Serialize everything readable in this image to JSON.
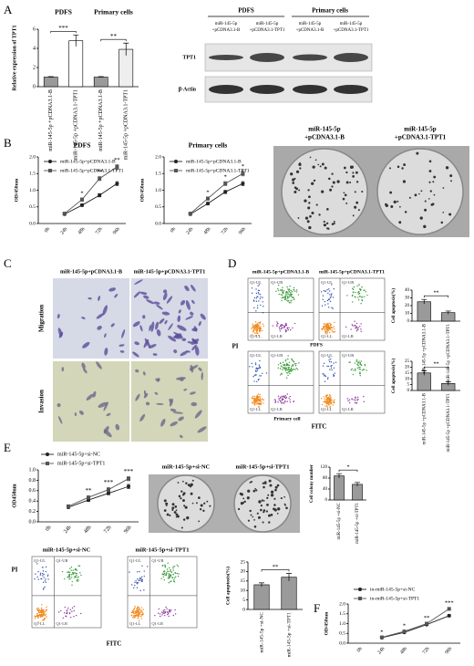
{
  "panel_labels": [
    "A",
    "B",
    "C",
    "D",
    "E",
    "F"
  ],
  "chart_data": [
    {
      "type": "bar",
      "ylabel": "Relative expression of TPT1",
      "categories": [
        "miR-145-5p +pCDNA3.1-B",
        "miR-145-5p +pCDNA3.1-TPT1",
        "miR-145-5p +pCDNA3.1-B",
        "miR-145-5p +pCDNA3.1-TPT1"
      ],
      "values": [
        1.0,
        4.8,
        1.0,
        3.9
      ],
      "errors": [
        0.05,
        0.6,
        0.05,
        0.65
      ],
      "colors": [
        "#9a9a9a",
        "#ffffff",
        "#9a9a9a",
        "#eeeeee"
      ],
      "group_labels": [
        "PDFS",
        "Primary cells"
      ],
      "significance": [
        "***",
        "**"
      ],
      "ylim": [
        0,
        6
      ],
      "yticks": [
        0,
        2,
        4,
        6
      ]
    },
    {
      "type": "line",
      "title": "PDFS",
      "ylabel": "OD/450nm",
      "categories": [
        "0h",
        "24h",
        "48h",
        "72h",
        "96h"
      ],
      "series": [
        {
          "name": "miR-145-5p+pCDNA3.1-B",
          "color": "#222222",
          "marker": "circle",
          "values": [
            null,
            0.28,
            0.55,
            0.85,
            1.2
          ],
          "errors": [
            null,
            0.03,
            0.04,
            0.05,
            0.06
          ]
        },
        {
          "name": "miR-145-5p+pCDNA3.1-TPT1",
          "color": "#555555",
          "marker": "square",
          "values": [
            null,
            0.3,
            0.72,
            1.35,
            1.7
          ],
          "errors": [
            null,
            0.03,
            0.05,
            0.06,
            0.07
          ]
        }
      ],
      "annotations": [
        null,
        null,
        "*",
        "**",
        "**"
      ],
      "ylim": [
        0,
        2
      ],
      "yticks": [
        {
          "value": 0,
          "label": "0.0"
        },
        {
          "value": 0.5,
          "label": "0.5"
        },
        {
          "value": 1,
          "label": "1.0"
        },
        {
          "value": 1.5,
          "label": "1.5"
        },
        {
          "value": 2,
          "label": "2.0"
        }
      ]
    },
    {
      "type": "line",
      "title": "Primary cells",
      "ylabel": "OD/450nm",
      "categories": [
        "0h",
        "24h",
        "48h",
        "72h",
        "96h"
      ],
      "series": [
        {
          "name": "miR-145-5p+pCDNA3.1-B",
          "color": "#222222",
          "marker": "circle",
          "values": [
            null,
            0.28,
            0.6,
            0.95,
            1.2
          ],
          "errors": [
            null,
            0.03,
            0.04,
            0.05,
            0.06
          ]
        },
        {
          "name": "miR-145-5p+pCDNA3.1-TPT1",
          "color": "#555555",
          "marker": "square",
          "values": [
            null,
            0.3,
            0.75,
            1.2,
            1.5
          ],
          "errors": [
            null,
            0.03,
            0.05,
            0.06,
            0.07
          ]
        }
      ],
      "annotations": [
        null,
        null,
        "*",
        "*",
        "*"
      ],
      "ylim": [
        0,
        2
      ],
      "yticks": [
        {
          "value": 0,
          "label": "0.0"
        },
        {
          "value": 0.5,
          "label": "0.5"
        },
        {
          "value": 1,
          "label": "1.0"
        },
        {
          "value": 1.5,
          "label": "1.5"
        },
        {
          "value": 2,
          "label": "2.0"
        }
      ]
    },
    {
      "type": "bar",
      "ylabel": "Cell apoptosis(%)",
      "categories": [
        "miR-145-5p +pCDNA3.1-B",
        "miR-145-5p +pCDNA3.1-TPT1"
      ],
      "values": [
        25,
        11
      ],
      "errors": [
        3,
        2
      ],
      "colors": [
        "#9a9a9a",
        "#9a9a9a"
      ],
      "significance": [
        "**"
      ],
      "ylim": [
        0,
        40
      ],
      "yticks": [
        0,
        10,
        20,
        30,
        40
      ]
    },
    {
      "type": "bar",
      "ylabel": "Cell apoptosis(%)",
      "categories": [
        "miR-145-5p +pCDNA3.1-B",
        "miR-145-5p +pCDNA3.1-TPT1"
      ],
      "values": [
        15,
        6
      ],
      "errors": [
        2,
        1.5
      ],
      "colors": [
        "#9a9a9a",
        "#9a9a9a"
      ],
      "significance": [
        "**"
      ],
      "ylim": [
        0,
        25
      ],
      "yticks": [
        0,
        5,
        10,
        15,
        20,
        25
      ]
    },
    {
      "type": "line",
      "ylabel": "OD450nm",
      "categories": [
        "0h",
        "24h",
        "48h",
        "72h",
        "96h"
      ],
      "series": [
        {
          "name": "miR-145-5p+si-NC",
          "color": "#222222",
          "marker": "circle",
          "values": [
            null,
            0.28,
            0.42,
            0.55,
            0.68
          ],
          "errors": [
            null,
            0.02,
            0.03,
            0.03,
            0.04
          ]
        },
        {
          "name": "miR-145-5p+si-TPT1",
          "color": "#555555",
          "marker": "square",
          "values": [
            null,
            0.3,
            0.47,
            0.62,
            0.83
          ],
          "errors": [
            null,
            0.02,
            0.03,
            0.04,
            0.04
          ]
        }
      ],
      "annotations": [
        null,
        null,
        "**",
        "***",
        "***"
      ],
      "ylim": [
        0,
        1
      ],
      "yticks": [
        {
          "value": 0,
          "label": "0.0"
        },
        {
          "value": 0.2,
          "label": "0.2"
        },
        {
          "value": 0.4,
          "label": "0.4"
        },
        {
          "value": 0.6,
          "label": "0.6"
        },
        {
          "value": 0.8,
          "label": "0.8"
        },
        {
          "value": 1,
          "label": "1.0"
        }
      ]
    },
    {
      "type": "bar",
      "ylabel": "Cell colony number",
      "categories": [
        "miR-145-5p +si-NC",
        "miR-145-5p +si-TPT1"
      ],
      "values": [
        88,
        57
      ],
      "errors": [
        8,
        7
      ],
      "colors": [
        "#9a9a9a",
        "#9a9a9a"
      ],
      "significance": [
        "*"
      ],
      "ylim": [
        0,
        120
      ],
      "yticks": [
        0,
        40,
        80,
        120
      ]
    },
    {
      "type": "bar",
      "ylabel": "Cell apoptosis(%)",
      "categories": [
        "miR-145-5p +si-NC",
        "miR-145-5p +si-TPT1"
      ],
      "values": [
        13,
        17
      ],
      "errors": [
        1,
        2
      ],
      "colors": [
        "#9a9a9a",
        "#9a9a9a"
      ],
      "significance": [
        "**"
      ],
      "ylim": [
        0,
        25
      ],
      "yticks": [
        0,
        5,
        10,
        15,
        20,
        25
      ]
    },
    {
      "type": "line",
      "ylabel": "OD/450nm",
      "categories": [
        "0h",
        "24h",
        "48h",
        "72h",
        "96h"
      ],
      "series": [
        {
          "name": "in-miR-145-5p+si-NC",
          "color": "#222222",
          "marker": "circle",
          "values": [
            null,
            0.28,
            0.55,
            0.95,
            1.4
          ],
          "errors": [
            null,
            0.03,
            0.04,
            0.05,
            0.06
          ]
        },
        {
          "name": "in-miR-145-5p+si-TPT1",
          "color": "#555555",
          "marker": "square",
          "values": [
            null,
            0.3,
            0.6,
            1.0,
            1.75
          ],
          "errors": [
            null,
            0.03,
            0.04,
            0.05,
            0.07
          ]
        }
      ],
      "annotations": [
        null,
        "*",
        "*",
        "**",
        "***"
      ],
      "ylim": [
        0,
        2
      ],
      "yticks": [
        {
          "value": 0,
          "label": "0.0"
        },
        {
          "value": 0.5,
          "label": "0.5"
        },
        {
          "value": 1,
          "label": "1.0"
        },
        {
          "value": 1.5,
          "label": "1.5"
        },
        {
          "value": 2,
          "label": "2.0"
        }
      ]
    }
  ],
  "blot": {
    "groups": [
      "PDFS",
      "Primary cells"
    ],
    "lanes": [
      [
        "miR-145-5p",
        "+pCDNA3.1-B"
      ],
      [
        "miR-145-5p",
        "+pCDNA3.1-TPT1"
      ],
      [
        "miR-145-5p",
        "+pCDNA3.1-B"
      ],
      [
        "miR-145-5p",
        "+pCDNA3.1-TPT1"
      ]
    ],
    "rows": [
      "TPT1",
      "β-Actin"
    ]
  },
  "colony_B": {
    "labels": [
      [
        "miR-145-5p",
        "+pCDNA3.1-B"
      ],
      [
        "miR-145-5p",
        "+pCDNA3.1-TPT1"
      ]
    ]
  },
  "micrographs": {
    "columns": [
      "miR-145-5p+pCDNA3.1-B",
      "miR-145-5p+pCDNA3.1-TPT1"
    ],
    "rows": [
      "Migration",
      "Invasion"
    ]
  },
  "flow_D": {
    "columns": [
      "miR-145-5p+pCDNA3.1-B",
      "miR-145-5p+pCDNA3.1-TPT1"
    ],
    "row_labels": [
      "PDFS",
      "Primary cell"
    ],
    "x_label": "FITC",
    "y_label": "PI",
    "quadrants": [
      "Q1-UL",
      "Q1-UR",
      "Q1-LL",
      "Q1-LR"
    ]
  },
  "colony_E": {
    "labels": [
      "miR-145-5p+si-NC",
      "miR-145-5p+si-TPT1"
    ]
  },
  "flow_E": {
    "columns": [
      "miR-145-5p+si-NC",
      "miR-145-5p+si-TPT1"
    ],
    "x_label": "FITC",
    "y_label": "PI",
    "quadrants": [
      "Q1-UL",
      "Q1-UR",
      "Q1-LL",
      "Q1-LR"
    ]
  }
}
